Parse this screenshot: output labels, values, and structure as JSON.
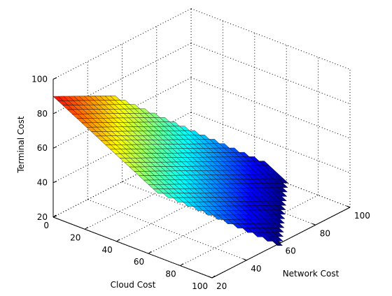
{
  "chart_data": {
    "type": "surface",
    "title": "",
    "xlabel": "Cloud Cost",
    "ylabel": "Network Cost",
    "zlabel": "Terminal Cost",
    "xlim": [
      0,
      100
    ],
    "ylim": [
      20,
      100
    ],
    "zlim": [
      20,
      100
    ],
    "x_ticks": [
      0,
      20,
      40,
      60,
      80,
      100
    ],
    "y_ticks": [
      20,
      40,
      60,
      80,
      100
    ],
    "z_ticks": [
      20,
      40,
      60,
      80,
      100
    ],
    "grid": true,
    "colormap": "jet",
    "surface_relation": "terminal_cost = 100 - (cloud_cost + network_cost) / 2",
    "domain_note": "surface drawn only inside a diagonal band of the cloud/network plane"
  }
}
